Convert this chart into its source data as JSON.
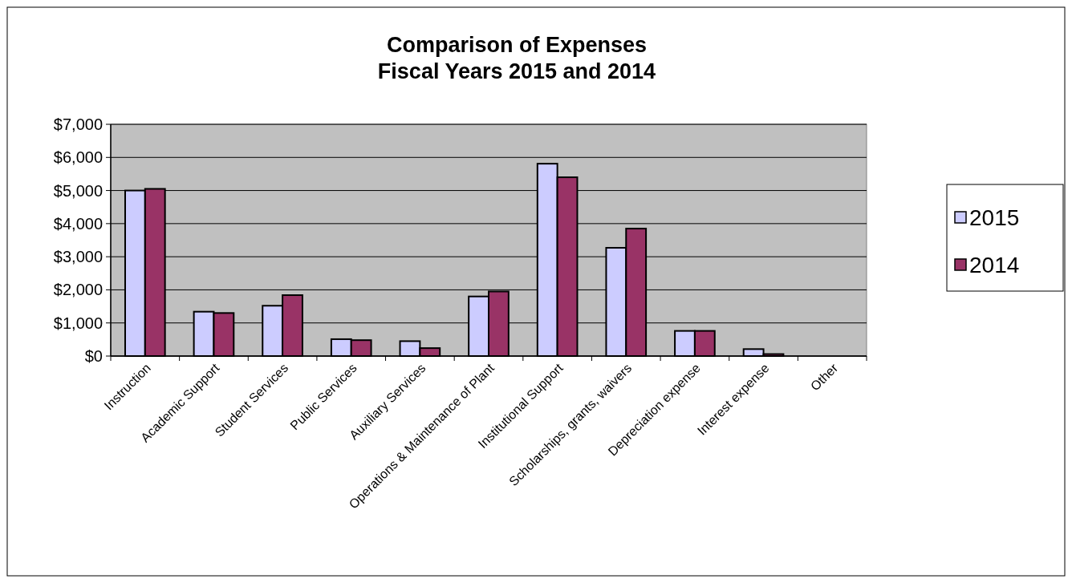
{
  "chart_data": {
    "type": "bar",
    "title": "Comparison of Expenses\nFiscal Years 2015 and 2014",
    "categories": [
      "Instruction",
      "Academic Support",
      "Student Services",
      "Public Services",
      "Auxiliary Services",
      "Operations & Maintenance of Plant",
      "Institutional Support",
      "Scholarships, grants, waivers",
      "Depreciation expense",
      "Interest expense",
      "Other"
    ],
    "series": [
      {
        "name": "2015",
        "color": "#ccccff",
        "values": [
          5000,
          1340,
          1520,
          510,
          450,
          1800,
          5810,
          3270,
          760,
          210,
          0
        ]
      },
      {
        "name": "2014",
        "color": "#993366",
        "values": [
          5050,
          1300,
          1840,
          480,
          240,
          1950,
          5400,
          3850,
          760,
          60,
          0
        ]
      }
    ],
    "ylim": [
      0,
      7000
    ],
    "yticks": [
      {
        "value": 0,
        "label": "$0"
      },
      {
        "value": 1000,
        "label": "$1,000"
      },
      {
        "value": 2000,
        "label": "$2,000"
      },
      {
        "value": 3000,
        "label": "$3,000"
      },
      {
        "value": 4000,
        "label": "$4,000"
      },
      {
        "value": 5000,
        "label": "$5,000"
      },
      {
        "value": 6000,
        "label": "$6,000"
      },
      {
        "value": 7000,
        "label": "$7,000"
      }
    ],
    "grid": "y",
    "legend": "right"
  }
}
